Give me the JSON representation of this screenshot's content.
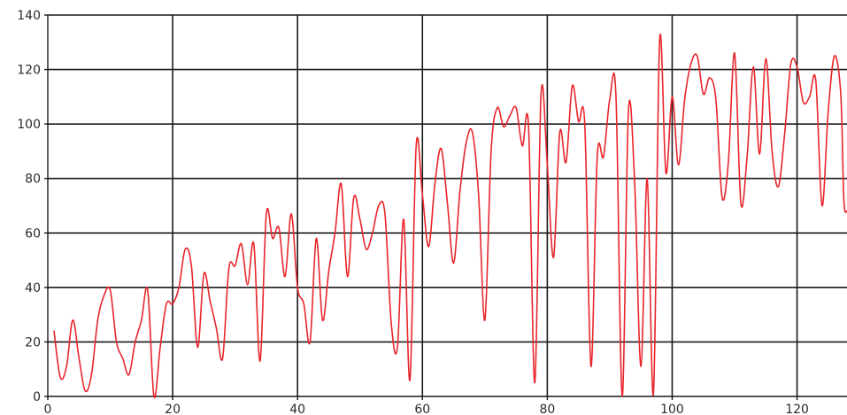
{
  "chart_data": {
    "type": "line",
    "title": "",
    "xlabel": "",
    "ylabel": "",
    "xlim": [
      0,
      128
    ],
    "ylim": [
      0,
      140
    ],
    "grid": true,
    "x_ticks": [
      0,
      20,
      40,
      60,
      80,
      100,
      120
    ],
    "y_ticks": [
      0,
      20,
      40,
      60,
      80,
      100,
      120,
      140
    ],
    "x_tick_labels": [
      "0",
      "20",
      "40",
      "60",
      "80",
      "100",
      "120"
    ],
    "y_tick_labels": [
      "0",
      "20",
      "40",
      "60",
      "80",
      "100",
      "120",
      "140"
    ],
    "series": [
      {
        "color": "#e8262b",
        "points": [
          [
            1,
            24
          ],
          [
            2,
            7
          ],
          [
            3,
            11
          ],
          [
            4,
            28
          ],
          [
            5,
            14
          ],
          [
            6,
            2
          ],
          [
            7,
            8
          ],
          [
            8,
            28
          ],
          [
            9,
            37
          ],
          [
            10,
            39
          ],
          [
            11,
            20
          ],
          [
            12,
            14
          ],
          [
            13,
            8
          ],
          [
            14,
            20
          ],
          [
            15,
            28
          ],
          [
            16,
            39
          ],
          [
            17,
            0
          ],
          [
            18,
            18
          ],
          [
            19,
            34
          ],
          [
            20,
            34
          ],
          [
            21,
            40
          ],
          [
            22,
            54
          ],
          [
            23,
            48
          ],
          [
            24,
            18
          ],
          [
            25,
            45
          ],
          [
            26,
            35
          ],
          [
            27,
            25
          ],
          [
            28,
            14
          ],
          [
            29,
            47
          ],
          [
            30,
            48
          ],
          [
            31,
            56
          ],
          [
            32,
            41
          ],
          [
            33,
            56
          ],
          [
            34,
            13
          ],
          [
            35,
            67
          ],
          [
            36,
            58
          ],
          [
            37,
            62
          ],
          [
            38,
            44
          ],
          [
            39,
            67
          ],
          [
            40,
            40
          ],
          [
            41,
            34
          ],
          [
            42,
            20
          ],
          [
            43,
            58
          ],
          [
            44,
            28
          ],
          [
            45,
            46
          ],
          [
            46,
            60
          ],
          [
            47,
            78
          ],
          [
            48,
            44
          ],
          [
            49,
            73
          ],
          [
            50,
            65
          ],
          [
            51,
            54
          ],
          [
            52,
            60
          ],
          [
            53,
            70
          ],
          [
            54,
            67
          ],
          [
            55,
            27
          ],
          [
            56,
            18
          ],
          [
            57,
            65
          ],
          [
            58,
            6
          ],
          [
            59,
            92
          ],
          [
            60,
            74
          ],
          [
            61,
            55
          ],
          [
            62,
            78
          ],
          [
            63,
            91
          ],
          [
            64,
            71
          ],
          [
            65,
            49
          ],
          [
            66,
            75
          ],
          [
            67,
            93
          ],
          [
            68,
            97
          ],
          [
            69,
            74
          ],
          [
            70,
            28
          ],
          [
            71,
            90
          ],
          [
            72,
            106
          ],
          [
            73,
            99
          ],
          [
            74,
            103
          ],
          [
            75,
            106
          ],
          [
            76,
            92
          ],
          [
            77,
            99
          ],
          [
            78,
            5
          ],
          [
            79,
            111
          ],
          [
            80,
            85
          ],
          [
            81,
            51
          ],
          [
            82,
            97
          ],
          [
            83,
            86
          ],
          [
            84,
            114
          ],
          [
            85,
            101
          ],
          [
            86,
            100
          ],
          [
            87,
            11
          ],
          [
            88,
            88
          ],
          [
            89,
            88
          ],
          [
            90,
            109
          ],
          [
            91,
            110
          ],
          [
            92,
            0
          ],
          [
            93,
            105
          ],
          [
            94,
            78
          ],
          [
            95,
            11
          ],
          [
            96,
            80
          ],
          [
            97,
            1
          ],
          [
            98,
            131
          ],
          [
            99,
            82
          ],
          [
            100,
            110
          ],
          [
            101,
            85
          ],
          [
            102,
            109
          ],
          [
            103,
            122
          ],
          [
            104,
            125
          ],
          [
            105,
            111
          ],
          [
            106,
            117
          ],
          [
            107,
            109
          ],
          [
            108,
            73
          ],
          [
            109,
            86
          ],
          [
            110,
            126
          ],
          [
            111,
            71
          ],
          [
            112,
            88
          ],
          [
            113,
            121
          ],
          [
            114,
            89
          ],
          [
            115,
            124
          ],
          [
            116,
            90
          ],
          [
            117,
            77
          ],
          [
            118,
            96
          ],
          [
            119,
            122
          ],
          [
            120,
            121
          ],
          [
            121,
            108
          ],
          [
            122,
            110
          ],
          [
            123,
            116
          ],
          [
            124,
            70
          ],
          [
            125,
            105
          ],
          [
            126,
            125
          ],
          [
            127,
            111
          ],
          [
            127.5,
            72
          ],
          [
            128,
            68
          ]
        ]
      }
    ]
  }
}
